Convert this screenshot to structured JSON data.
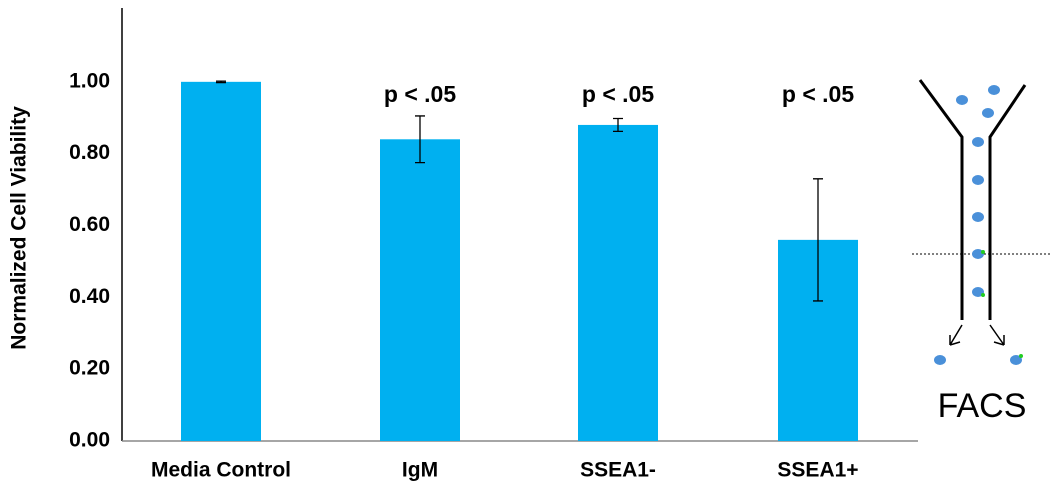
{
  "chart_data": {
    "type": "bar",
    "y_label": "Normalized Cell Viability",
    "categories": [
      "Media Control",
      "IgM",
      "SSEA1-",
      "SSEA1+"
    ],
    "values": [
      1.0,
      0.84,
      0.88,
      0.56
    ],
    "errors": [
      0.002,
      0.065,
      0.018,
      0.17
    ],
    "color": "#00b0f0",
    "ylim": [
      0,
      1.2
    ],
    "yticks": [
      {
        "value": 0,
        "label": "0.00"
      },
      {
        "value": 0.2,
        "label": "0.20"
      },
      {
        "value": 0.4,
        "label": "0.40"
      },
      {
        "value": 0.6,
        "label": "0.60"
      },
      {
        "value": 0.8,
        "label": "0.80"
      },
      {
        "value": 1,
        "label": "1.00"
      }
    ],
    "annotations": [
      null,
      "p < .05",
      "p < .05",
      "p < .05"
    ],
    "grid": false
  },
  "diagram": {
    "label": "FACS"
  }
}
